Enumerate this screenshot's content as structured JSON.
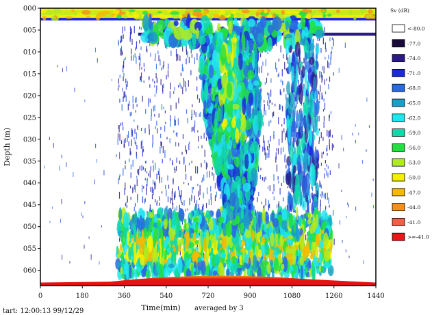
{
  "chart_data": {
    "type": "heatmap",
    "title": "",
    "xlabel": "Time(min)",
    "ylabel": "Depth (m)",
    "averaging_note": "averaged by  3",
    "start_stamp": "tart: 12:00:13 99/12/29",
    "x_ticks": [
      "0",
      "180",
      "360",
      "540",
      "720",
      "900",
      "1080",
      "1260",
      "1440"
    ],
    "x_tick_values": [
      0,
      180,
      360,
      540,
      720,
      900,
      1080,
      1260,
      1440
    ],
    "xlim": [
      0,
      1440
    ],
    "y_ticks": [
      "000",
      "005",
      "010",
      "015",
      "020",
      "025",
      "030",
      "035",
      "040",
      "045",
      "050",
      "055",
      "060"
    ],
    "y_tick_values": [
      0,
      5,
      10,
      15,
      20,
      25,
      30,
      35,
      40,
      45,
      50,
      55,
      60
    ],
    "ylim": [
      0,
      63.5
    ],
    "y_inverted": true,
    "legend": {
      "title": "Sv (dB)",
      "position": "right",
      "entries": [
        {
          "label": "<-80.0",
          "color": "#ffffff"
        },
        {
          "label": "-77.0",
          "color": "#1a0a3a"
        },
        {
          "label": "-74.0",
          "color": "#2a1a8a"
        },
        {
          "label": "-71.0",
          "color": "#1a2ad8"
        },
        {
          "label": "-68.0",
          "color": "#2a6ae0"
        },
        {
          "label": "-65.0",
          "color": "#1aa0c8"
        },
        {
          "label": "-62.0",
          "color": "#20e6f0"
        },
        {
          "label": "-59.0",
          "color": "#10d8a8"
        },
        {
          "label": "-56.0",
          "color": "#22e040"
        },
        {
          "label": "-53.0",
          "color": "#b0ea20"
        },
        {
          "label": "-50.0",
          "color": "#f4f000"
        },
        {
          "label": "-47.0",
          "color": "#f8b800"
        },
        {
          "label": "-44.0",
          "color": "#f89018"
        },
        {
          "label": "-41.0",
          "color": "#f06048"
        },
        {
          "label": ">=-41.0",
          "color": "#e81818"
        }
      ]
    },
    "grid": false
  }
}
